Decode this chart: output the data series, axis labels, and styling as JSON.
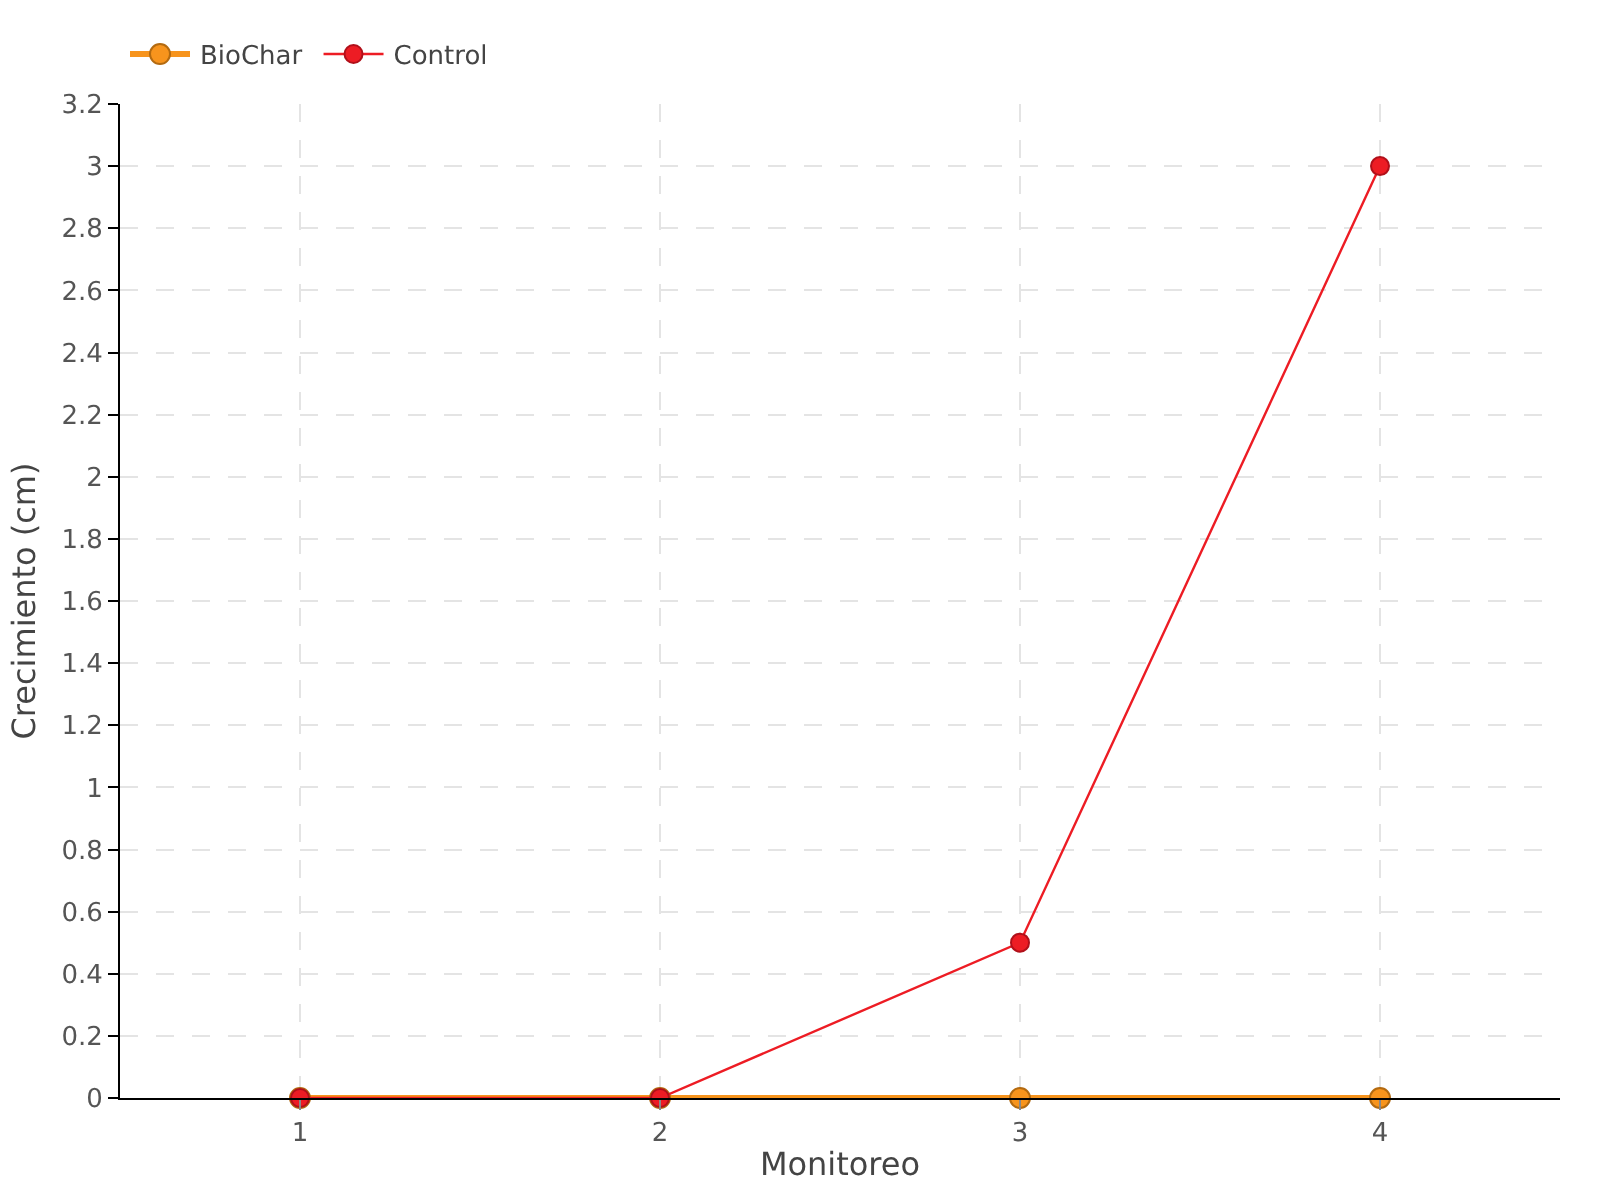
{
  "chart_data": {
    "type": "line",
    "xlabel": "Monitoreo",
    "ylabel": "Crecimiento (cm)",
    "categories": [
      "1",
      "2",
      "3",
      "4"
    ],
    "series": [
      {
        "name": "BioChar",
        "color": "#f7941d",
        "values": [
          0,
          0,
          0,
          0
        ]
      },
      {
        "name": "Control",
        "color": "#ed1c24",
        "values": [
          0,
          0,
          0.5,
          3
        ]
      }
    ],
    "ylim": [
      0,
      3.2
    ],
    "yticks": [
      0,
      0.2,
      0.4,
      0.6,
      0.8,
      1,
      1.2,
      1.4,
      1.6,
      1.8,
      2,
      2.2,
      2.4,
      2.6,
      2.8,
      3,
      3.2
    ],
    "grid": true,
    "legend": "top left",
    "marker": "circle",
    "line_style": "solid"
  }
}
